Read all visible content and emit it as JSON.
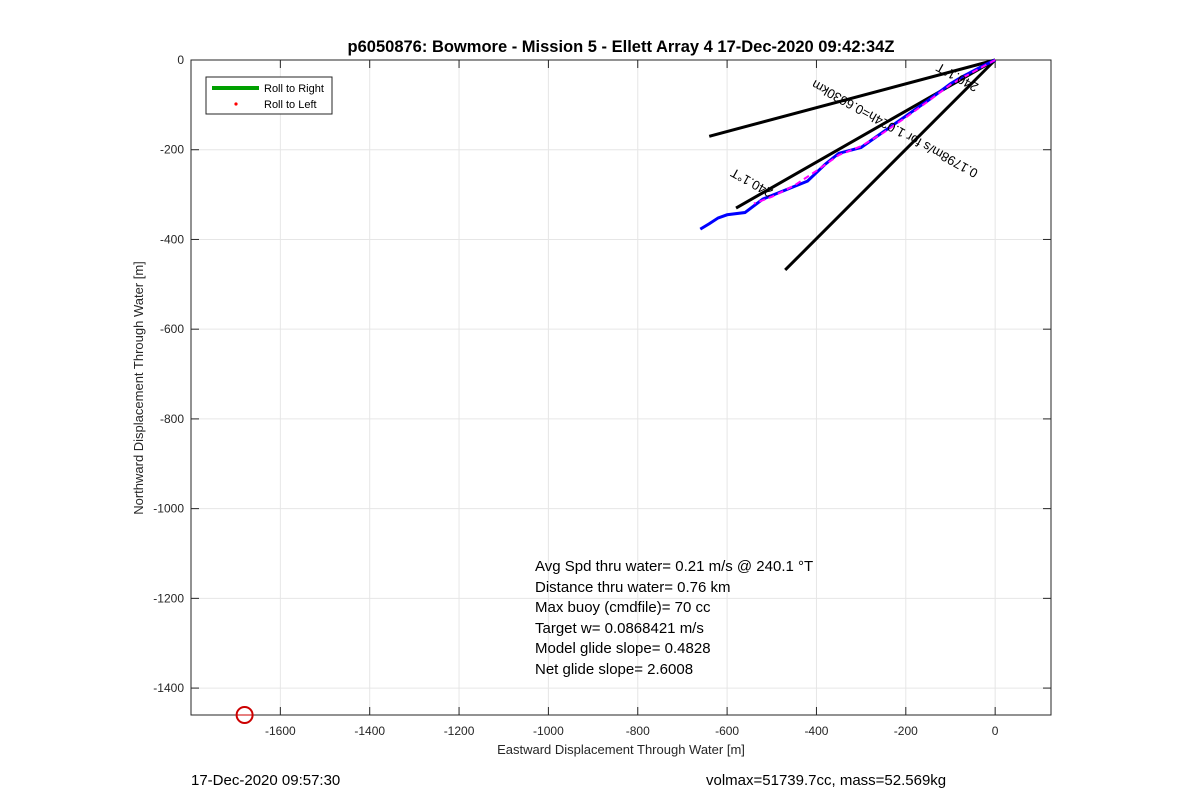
{
  "chart_data": {
    "type": "line",
    "title": "p6050876: Bowmore - Mission 5 - Ellett Array 4 17-Dec-2020 09:42:34Z",
    "xlabel": "Eastward Displacement Through Water [m]",
    "ylabel": "Northward Displacement Through Water [m]",
    "xlim": [
      -1800,
      125
    ],
    "ylim": [
      -1460,
      0
    ],
    "xticks": [
      -1600,
      -1400,
      -1200,
      -1000,
      -800,
      -600,
      -400,
      -200,
      0
    ],
    "yticks": [
      0,
      -200,
      -400,
      -600,
      -800,
      -1000,
      -1200,
      -1400
    ],
    "grid": true,
    "legend": {
      "placement": "top-left",
      "entries": [
        {
          "label": "Roll to Right",
          "color": "#00a000",
          "style": "line"
        },
        {
          "label": "Roll to Left",
          "color": "#ff0000",
          "style": "dot"
        }
      ]
    },
    "series": [
      {
        "color": "#0000ff",
        "x": [
          0,
          -25,
          -50,
          -75,
          -100,
          -150,
          -200,
          -250,
          -300,
          -350,
          -380,
          -420,
          -470,
          -520,
          -560,
          -600,
          -620,
          -640,
          -660
        ],
        "y": [
          0,
          -12,
          -25,
          -38,
          -53,
          -90,
          -125,
          -160,
          -195,
          -208,
          -232,
          -270,
          -290,
          -310,
          -340,
          -345,
          -352,
          -365,
          -377
        ]
      },
      {
        "color": "#ff00ff",
        "x": [
          0,
          -50,
          -100,
          -150,
          -200,
          -250,
          -300,
          -350,
          -400,
          -450,
          -500,
          -540
        ],
        "y": [
          0,
          -27,
          -55,
          -92,
          -128,
          -162,
          -192,
          -212,
          -247,
          -280,
          -305,
          -320
        ]
      }
    ],
    "reference_lines": [
      {
        "color": "#000000",
        "x": [
          0,
          -640
        ],
        "y": [
          0,
          -170
        ]
      },
      {
        "color": "#000000",
        "x": [
          0,
          -470
        ],
        "y": [
          0,
          -468
        ]
      },
      {
        "color": "#000000",
        "x": [
          0,
          -580
        ],
        "y": [
          0,
          -330
        ]
      }
    ],
    "annotations": [
      {
        "text": "240.1°T",
        "x": -540,
        "y": -265,
        "angle_deg": 29
      },
      {
        "text": "0.1798m/s for 1.024h=0.6630km",
        "x": -220,
        "y": -145,
        "angle_deg": 29
      },
      {
        "text": "240.1°T",
        "x": -80,
        "y": -30,
        "angle_deg": 29
      }
    ],
    "marker": {
      "shape": "circle",
      "color": "#cc0000",
      "x": -1680,
      "y": -1460
    }
  },
  "stats": [
    "Avg Spd thru water=  0.21 m/s @ 240.1 °T",
    "Distance thru water=  0.76 km",
    "Max buoy (cmdfile)= 70 cc",
    "Target w= 0.0868421 m/s",
    "Model glide slope= 0.4828",
    "Net glide slope= 2.6008"
  ],
  "footer": {
    "left": "17-Dec-2020 09:57:30",
    "right": "volmax=51739.7cc, mass=52.569kg"
  }
}
